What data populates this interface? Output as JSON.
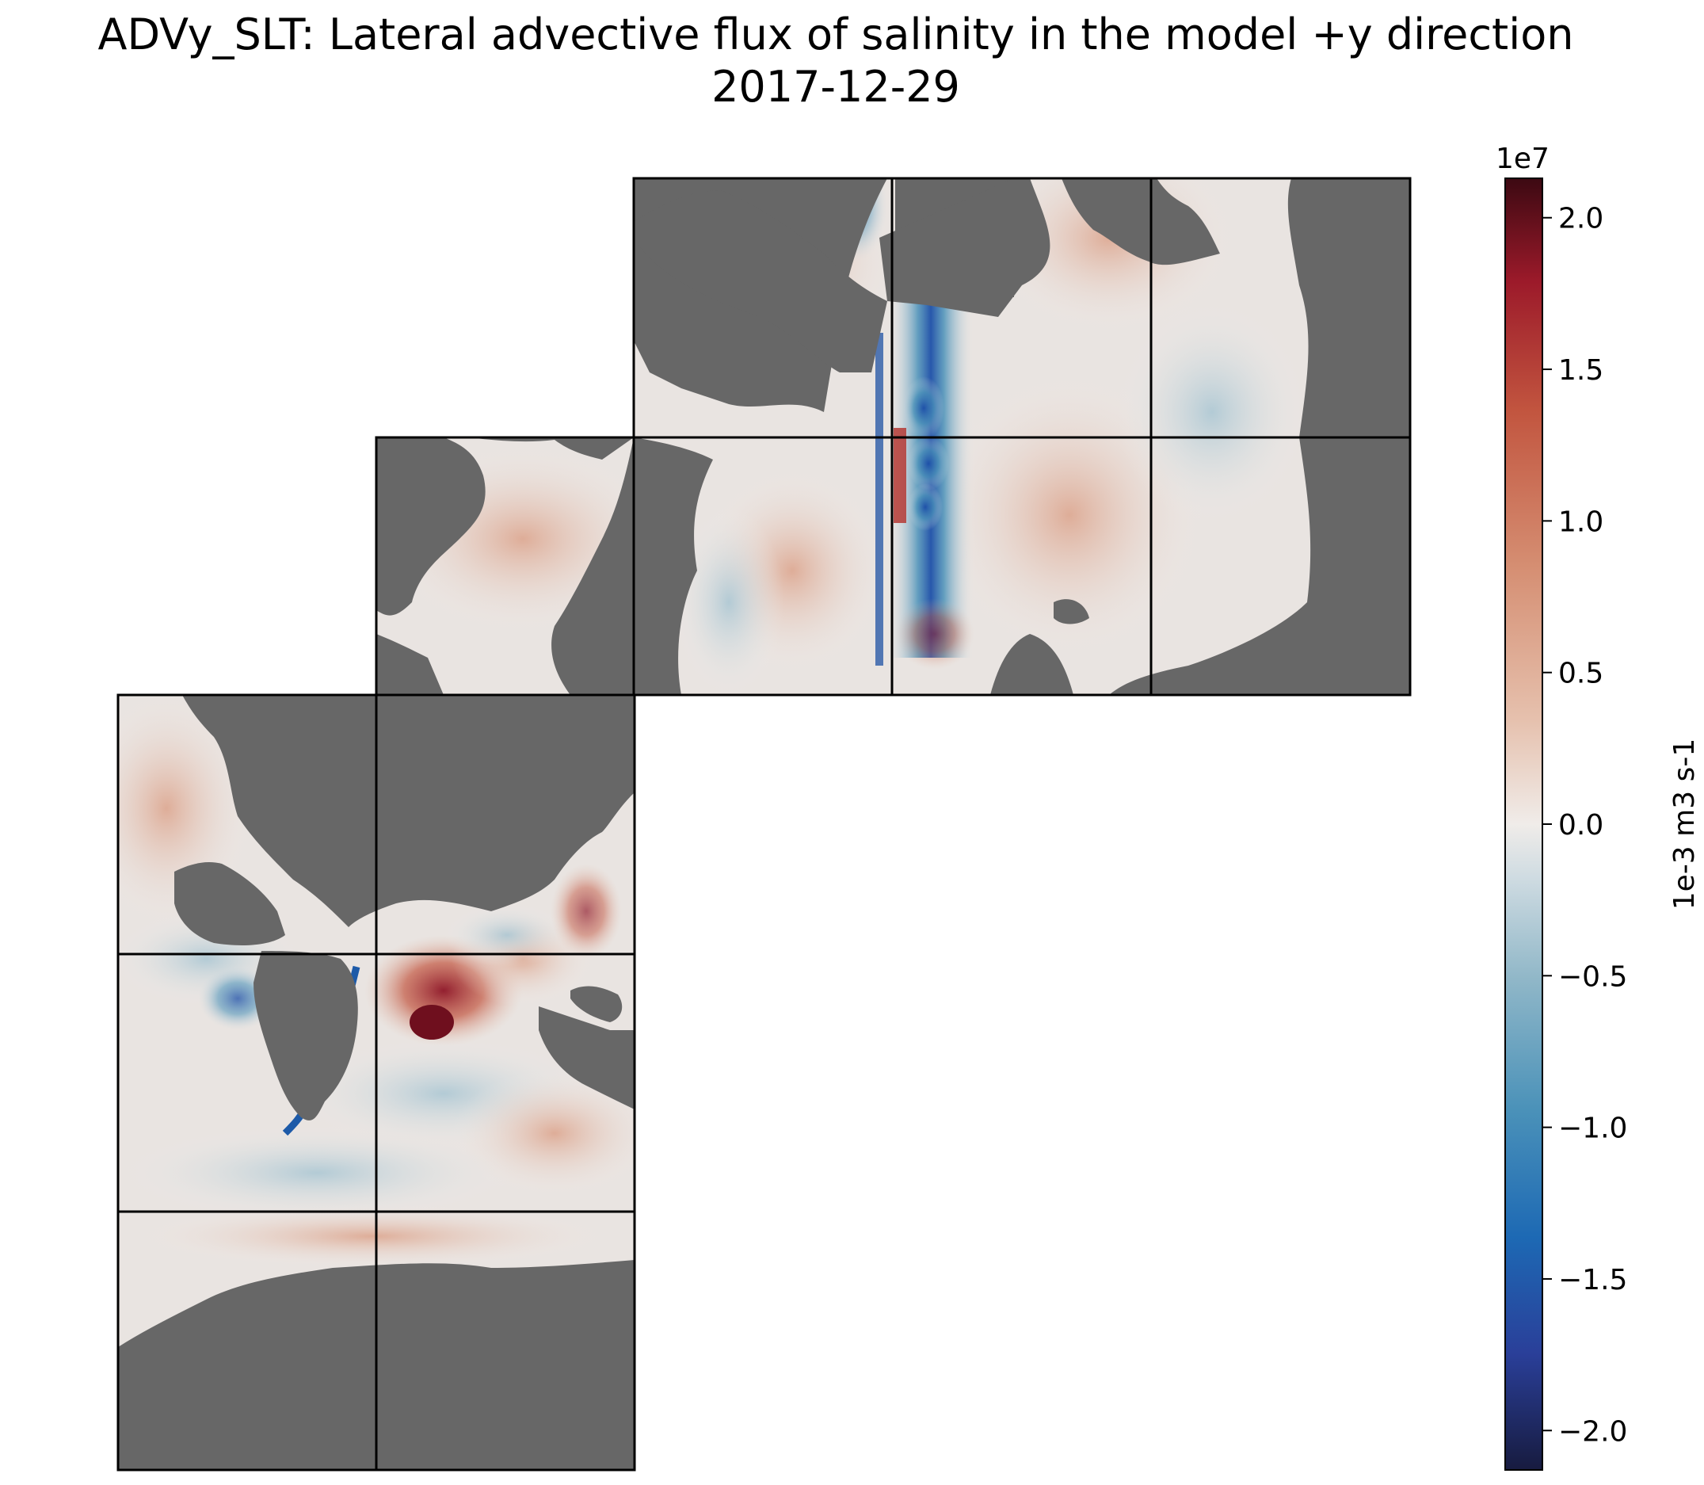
{
  "chart_data": {
    "type": "heatmap",
    "title": "ADVy_SLT: Lateral advective flux of salinity in the model +y direction",
    "subtitle": "2017-12-29",
    "colorbar": {
      "label": "1e-3 m3 s-1",
      "offset_text": "1e7",
      "range": [
        -2.13,
        2.13
      ],
      "ticks": [
        2.0,
        1.5,
        1.0,
        0.5,
        0.0,
        -0.5,
        -1.0,
        -1.5,
        -2.0
      ],
      "tick_labels": [
        "2.0",
        "1.5",
        "1.0",
        "0.5",
        "0.0",
        "−0.5",
        "−1.0",
        "−1.5",
        "−2.0"
      ],
      "colormap": "balance (diverging blue-white-red)",
      "colors": [
        "#171b3f",
        "#2a3f99",
        "#1d69b4",
        "#4b92b9",
        "#90b7c8",
        "#d0dce2",
        "#f0ece9",
        "#e6c1ae",
        "#d58e72",
        "#c2553f",
        "#9c1a2a",
        "#3c0912"
      ]
    },
    "land_color": "#676767",
    "grid": "LLC90 tiles arranged in a 2x3 lower-left block and a 3x2 upper-right block",
    "features": [
      {
        "name": "strong negative (blue) band along upper central tile column",
        "value_min": -1.9
      },
      {
        "name": "strong positive (red) core in lower-left Indian Ocean region",
        "value_max": 2.0
      }
    ]
  }
}
